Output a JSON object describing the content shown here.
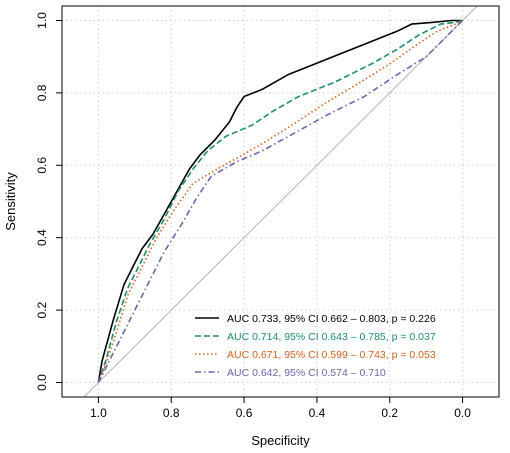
{
  "chart_data": {
    "type": "line",
    "title": "",
    "xlabel": "Specificity",
    "ylabel": "Sensitivity",
    "xlim": [
      1.1,
      -0.1
    ],
    "ylim": [
      0,
      1.0
    ],
    "x_reversed": true,
    "x_ticks": [
      "1.0",
      "0.8",
      "0.6",
      "0.4",
      "0.2",
      "0.0"
    ],
    "x_tick_values": [
      1.0,
      0.8,
      0.6,
      0.4,
      0.2,
      0.0
    ],
    "y_ticks": [
      "0.0",
      "0.2",
      "0.4",
      "0.6",
      "0.8",
      "1.0"
    ],
    "y_tick_values": [
      0.0,
      0.2,
      0.4,
      0.6,
      0.8,
      1.0
    ],
    "grid": true,
    "legend_position": "bottom-right",
    "reference_line": {
      "from": [
        1.0,
        0.0
      ],
      "to": [
        0.0,
        1.0
      ],
      "color": "#b3b3b3"
    },
    "series": [
      {
        "legend": "AUC 0.733, 95% CI 0.662 – 0.803, p = 0.226",
        "color": "#000000",
        "dash": "solid",
        "points": [
          [
            1.0,
            0.0
          ],
          [
            0.99,
            0.06
          ],
          [
            0.96,
            0.17
          ],
          [
            0.93,
            0.27
          ],
          [
            0.9,
            0.33
          ],
          [
            0.88,
            0.37
          ],
          [
            0.85,
            0.41
          ],
          [
            0.8,
            0.5
          ],
          [
            0.75,
            0.59
          ],
          [
            0.72,
            0.63
          ],
          [
            0.68,
            0.67
          ],
          [
            0.64,
            0.72
          ],
          [
            0.62,
            0.76
          ],
          [
            0.6,
            0.79
          ],
          [
            0.55,
            0.81
          ],
          [
            0.48,
            0.85
          ],
          [
            0.38,
            0.89
          ],
          [
            0.28,
            0.93
          ],
          [
            0.18,
            0.97
          ],
          [
            0.14,
            0.99
          ],
          [
            0.08,
            0.995
          ],
          [
            0.03,
            1.0
          ],
          [
            0.0,
            1.0
          ]
        ]
      },
      {
        "legend": "AUC 0.714, 95% CI 0.643 – 0.785, p = 0.037",
        "color": "#1b8f6a",
        "dash": "dashed",
        "points": [
          [
            1.0,
            0.0
          ],
          [
            0.98,
            0.06
          ],
          [
            0.95,
            0.17
          ],
          [
            0.92,
            0.26
          ],
          [
            0.89,
            0.32
          ],
          [
            0.86,
            0.38
          ],
          [
            0.82,
            0.45
          ],
          [
            0.78,
            0.53
          ],
          [
            0.74,
            0.59
          ],
          [
            0.7,
            0.64
          ],
          [
            0.65,
            0.68
          ],
          [
            0.58,
            0.71
          ],
          [
            0.52,
            0.75
          ],
          [
            0.45,
            0.79
          ],
          [
            0.35,
            0.83
          ],
          [
            0.25,
            0.88
          ],
          [
            0.18,
            0.92
          ],
          [
            0.12,
            0.96
          ],
          [
            0.06,
            0.99
          ],
          [
            0.02,
            0.995
          ],
          [
            0.0,
            1.0
          ]
        ]
      },
      {
        "legend": "AUC 0.671, 95% CI 0.599 – 0.743, p = 0.053",
        "color": "#d2621f",
        "dash": "dotted",
        "points": [
          [
            1.0,
            0.0
          ],
          [
            0.98,
            0.05
          ],
          [
            0.95,
            0.14
          ],
          [
            0.92,
            0.24
          ],
          [
            0.88,
            0.32
          ],
          [
            0.84,
            0.4
          ],
          [
            0.79,
            0.48
          ],
          [
            0.74,
            0.55
          ],
          [
            0.69,
            0.58
          ],
          [
            0.62,
            0.62
          ],
          [
            0.55,
            0.66
          ],
          [
            0.47,
            0.71
          ],
          [
            0.38,
            0.77
          ],
          [
            0.28,
            0.83
          ],
          [
            0.2,
            0.88
          ],
          [
            0.13,
            0.93
          ],
          [
            0.07,
            0.97
          ],
          [
            0.02,
            0.99
          ],
          [
            0.0,
            1.0
          ]
        ]
      },
      {
        "legend": "AUC 0.642, 95% CI 0.574 – 0.710",
        "color": "#6e64ad",
        "dash": "dashdot",
        "points": [
          [
            1.0,
            0.0
          ],
          [
            0.97,
            0.06
          ],
          [
            0.94,
            0.12
          ],
          [
            0.9,
            0.2
          ],
          [
            0.86,
            0.28
          ],
          [
            0.82,
            0.36
          ],
          [
            0.77,
            0.44
          ],
          [
            0.73,
            0.51
          ],
          [
            0.69,
            0.57
          ],
          [
            0.62,
            0.61
          ],
          [
            0.55,
            0.64
          ],
          [
            0.46,
            0.69
          ],
          [
            0.37,
            0.74
          ],
          [
            0.27,
            0.79
          ],
          [
            0.18,
            0.85
          ],
          [
            0.1,
            0.9
          ],
          [
            0.05,
            0.95
          ],
          [
            0.02,
            0.98
          ],
          [
            0.0,
            1.0
          ]
        ]
      }
    ]
  }
}
